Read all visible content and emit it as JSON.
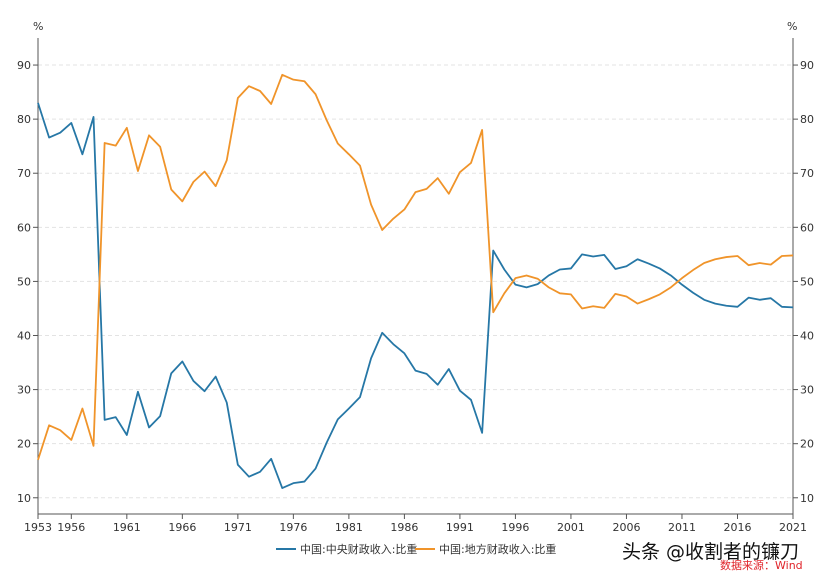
{
  "chart_data": {
    "type": "line",
    "title": "",
    "y_unit_left": "%",
    "y_unit_right": "%",
    "ylim": [
      7,
      95
    ],
    "yticks": [
      10,
      20,
      30,
      40,
      50,
      60,
      70,
      80,
      90
    ],
    "xlim": [
      1953,
      2021
    ],
    "xticks": [
      1953,
      1956,
      1961,
      1966,
      1971,
      1976,
      1981,
      1986,
      1991,
      1996,
      2001,
      2006,
      2011,
      2016,
      2021
    ],
    "years": [
      1953,
      1954,
      1955,
      1956,
      1957,
      1958,
      1959,
      1960,
      1961,
      1962,
      1963,
      1964,
      1965,
      1966,
      1967,
      1968,
      1969,
      1970,
      1971,
      1972,
      1973,
      1974,
      1975,
      1976,
      1977,
      1978,
      1979,
      1980,
      1981,
      1982,
      1983,
      1984,
      1985,
      1986,
      1987,
      1988,
      1989,
      1990,
      1991,
      1992,
      1993,
      1994,
      1995,
      1996,
      1997,
      1998,
      1999,
      2000,
      2001,
      2002,
      2003,
      2004,
      2005,
      2006,
      2007,
      2008,
      2009,
      2010,
      2011,
      2012,
      2013,
      2014,
      2015,
      2016,
      2017,
      2018,
      2019,
      2020,
      2021
    ],
    "series": [
      {
        "name": "中国:中央财政收入:比重",
        "color": "#2677a6",
        "values": [
          83.0,
          76.6,
          77.5,
          79.3,
          73.5,
          80.4,
          24.4,
          24.9,
          21.6,
          29.6,
          23.0,
          25.1,
          33.0,
          35.2,
          31.6,
          29.7,
          32.4,
          27.6,
          16.1,
          13.9,
          14.8,
          17.2,
          11.8,
          12.7,
          13.0,
          15.4,
          20.2,
          24.5,
          26.5,
          28.6,
          35.8,
          40.5,
          38.4,
          36.7,
          33.5,
          32.9,
          30.9,
          33.8,
          29.8,
          28.1,
          22.0,
          55.7,
          52.2,
          49.4,
          48.9,
          49.5,
          51.1,
          52.2,
          52.4,
          55.0,
          54.6,
          54.9,
          52.3,
          52.8,
          54.1,
          53.3,
          52.4,
          51.1,
          49.4,
          47.9,
          46.6,
          45.9,
          45.5,
          45.3,
          47.0,
          46.6,
          46.9,
          45.3,
          45.2
        ]
      },
      {
        "name": "中国:地方财政收入:比重",
        "color": "#f0942a",
        "values": [
          17.0,
          23.4,
          22.5,
          20.7,
          26.5,
          19.6,
          75.6,
          75.1,
          78.4,
          70.4,
          77.0,
          74.9,
          67.0,
          64.8,
          68.4,
          70.3,
          67.6,
          72.4,
          83.9,
          86.1,
          85.2,
          82.8,
          88.2,
          87.3,
          87.0,
          84.6,
          79.8,
          75.5,
          73.5,
          71.4,
          64.2,
          59.5,
          61.6,
          63.3,
          66.5,
          67.1,
          69.1,
          66.2,
          70.2,
          71.9,
          78.0,
          44.3,
          47.8,
          50.6,
          51.1,
          50.5,
          48.9,
          47.8,
          47.6,
          45.0,
          45.4,
          45.1,
          47.7,
          47.2,
          45.9,
          46.7,
          47.6,
          48.9,
          50.6,
          52.1,
          53.4,
          54.1,
          54.5,
          54.7,
          53.0,
          53.4,
          53.1,
          54.7,
          54.8
        ]
      }
    ],
    "legend_position": "bottom-center",
    "grid": true
  },
  "watermark": "头条 @收割者的镰刀",
  "source_note": "数据来源：Wind"
}
